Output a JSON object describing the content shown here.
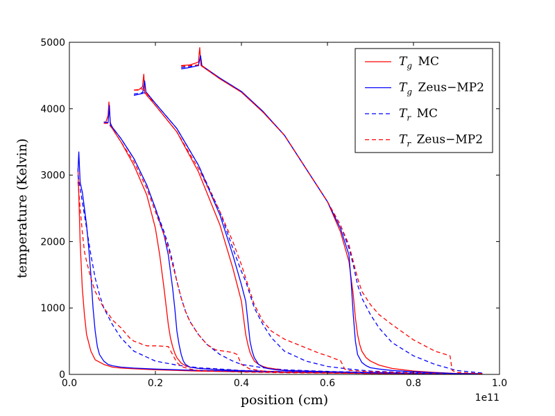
{
  "chart_data": {
    "type": "line",
    "title": "",
    "xlabel": "position (cm)",
    "ylabel": "temperature (Kelvin)",
    "x_scale_label": "1e11",
    "xlim": [
      0.0,
      1.0
    ],
    "ylim": [
      0,
      5000
    ],
    "x_ticks": [
      0.0,
      0.2,
      0.4,
      0.6,
      0.8,
      1.0
    ],
    "x_tick_labels": [
      "0.0",
      "0.2",
      "0.4",
      "0.6",
      "0.8",
      "1.0"
    ],
    "y_ticks": [
      0,
      1000,
      2000,
      3000,
      4000,
      5000
    ],
    "y_tick_labels": [
      "0",
      "1000",
      "2000",
      "3000",
      "4000",
      "5000"
    ],
    "legend_position": "top-right",
    "legend": [
      {
        "var": "T",
        "sub": "g",
        "label": "MC",
        "color": "#ff0000",
        "dash": "solid"
      },
      {
        "var": "T",
        "sub": "g",
        "label": "Zeus−MP2",
        "color": "#0000ff",
        "dash": "solid"
      },
      {
        "var": "T",
        "sub": "r",
        "label": "MC",
        "color": "#0000ff",
        "dash": "dashed"
      },
      {
        "var": "T",
        "sub": "r",
        "label": "Zeus−MP2",
        "color": "#ff0000",
        "dash": "dashed"
      }
    ],
    "series": [
      {
        "name": "Tg MC t1",
        "color": "#ff0000",
        "dash": "solid",
        "x": [
          0.02,
          0.022,
          0.025,
          0.03,
          0.035,
          0.04,
          0.05,
          0.06,
          0.08,
          0.1,
          0.12,
          0.15,
          0.2,
          0.3,
          0.5,
          0.7,
          0.9,
          0.96
        ],
        "y": [
          3100,
          2700,
          2000,
          1300,
          900,
          600,
          350,
          220,
          150,
          110,
          95,
          85,
          70,
          50,
          30,
          15,
          10,
          8
        ]
      },
      {
        "name": "Tg Zeus t1",
        "color": "#0000ff",
        "dash": "solid",
        "x": [
          0.02,
          0.022,
          0.025,
          0.028,
          0.03,
          0.033,
          0.035,
          0.04,
          0.045,
          0.05,
          0.055,
          0.06,
          0.065,
          0.07,
          0.08,
          0.09,
          0.1,
          0.12,
          0.15,
          0.2,
          0.3,
          0.5,
          0.7,
          0.9,
          0.96
        ],
        "y": [
          3050,
          3350,
          2900,
          2800,
          2750,
          2600,
          2500,
          2250,
          1900,
          1500,
          1000,
          650,
          420,
          300,
          200,
          150,
          130,
          110,
          95,
          80,
          60,
          35,
          20,
          10,
          8
        ]
      },
      {
        "name": "Tr MC t1",
        "color": "#0000ff",
        "dash": "dashed",
        "x": [
          0.02,
          0.025,
          0.03,
          0.035,
          0.04,
          0.05,
          0.06,
          0.07,
          0.08,
          0.1,
          0.12,
          0.15,
          0.2,
          0.25,
          0.3,
          0.35,
          0.4,
          0.5,
          0.6,
          0.7,
          0.9,
          0.96
        ],
        "y": [
          3000,
          2800,
          2600,
          2400,
          2200,
          1800,
          1450,
          1200,
          1000,
          750,
          550,
          350,
          200,
          140,
          100,
          80,
          60,
          40,
          30,
          20,
          10,
          8
        ]
      },
      {
        "name": "Tr Zeus t1",
        "color": "#ff0000",
        "dash": "dashed",
        "x": [
          0.02,
          0.025,
          0.03,
          0.035,
          0.04,
          0.05,
          0.06,
          0.07,
          0.08,
          0.09,
          0.1,
          0.11,
          0.12,
          0.14,
          0.15,
          0.16,
          0.17,
          0.18,
          0.2,
          0.23,
          0.24,
          0.25,
          0.26,
          0.28,
          0.3,
          0.35,
          0.4,
          0.5,
          0.6,
          0.7,
          0.9,
          0.96
        ],
        "y": [
          2900,
          2500,
          2150,
          1850,
          1700,
          1450,
          1250,
          1120,
          1000,
          920,
          820,
          760,
          700,
          550,
          500,
          480,
          450,
          430,
          430,
          420,
          300,
          180,
          120,
          80,
          60,
          45,
          35,
          25,
          20,
          15,
          10,
          8
        ]
      },
      {
        "name": "Tg MC t2",
        "color": "#ff0000",
        "dash": "solid",
        "x": [
          0.08,
          0.085,
          0.09,
          0.092,
          0.095,
          0.1,
          0.12,
          0.15,
          0.18,
          0.2,
          0.21,
          0.22,
          0.23,
          0.235,
          0.24,
          0.245,
          0.25,
          0.26,
          0.27,
          0.28,
          0.3,
          0.35,
          0.4,
          0.5,
          0.6,
          0.7,
          0.8,
          0.9,
          0.96
        ],
        "y": [
          3800,
          3800,
          3900,
          4100,
          3800,
          3700,
          3500,
          3150,
          2700,
          2200,
          1800,
          1300,
          750,
          550,
          420,
          320,
          250,
          170,
          130,
          110,
          90,
          70,
          55,
          40,
          30,
          20,
          15,
          10,
          8
        ]
      },
      {
        "name": "Tg Zeus t2",
        "color": "#0000ff",
        "dash": "solid",
        "x": [
          0.08,
          0.09,
          0.093,
          0.095,
          0.1,
          0.12,
          0.15,
          0.18,
          0.2,
          0.22,
          0.23,
          0.24,
          0.245,
          0.25,
          0.255,
          0.26,
          0.265,
          0.27,
          0.28,
          0.3,
          0.35,
          0.4,
          0.5,
          0.6,
          0.7,
          0.8,
          0.9,
          0.96
        ],
        "y": [
          3780,
          3790,
          4050,
          3780,
          3720,
          3550,
          3250,
          2850,
          2500,
          2100,
          1800,
          1300,
          1000,
          650,
          450,
          300,
          200,
          150,
          110,
          90,
          70,
          55,
          40,
          30,
          20,
          15,
          10,
          8
        ]
      },
      {
        "name": "Tr MC t2",
        "color": "#0000ff",
        "dash": "dashed",
        "x": [
          0.08,
          0.09,
          0.1,
          0.12,
          0.15,
          0.18,
          0.2,
          0.22,
          0.23,
          0.24,
          0.245,
          0.25,
          0.26,
          0.27,
          0.28,
          0.3,
          0.32,
          0.35,
          0.38,
          0.4,
          0.45,
          0.5,
          0.6,
          0.7,
          0.8,
          0.9,
          0.96
        ],
        "y": [
          3800,
          3790,
          3720,
          3550,
          3250,
          2850,
          2500,
          2150,
          1950,
          1700,
          1550,
          1400,
          1150,
          950,
          800,
          600,
          450,
          300,
          200,
          150,
          100,
          70,
          45,
          30,
          20,
          10,
          8
        ]
      },
      {
        "name": "Tr Zeus t2",
        "color": "#ff0000",
        "dash": "dashed",
        "x": [
          0.08,
          0.09,
          0.1,
          0.12,
          0.15,
          0.18,
          0.2,
          0.22,
          0.23,
          0.24,
          0.25,
          0.26,
          0.27,
          0.28,
          0.3,
          0.32,
          0.34,
          0.36,
          0.38,
          0.39,
          0.4,
          0.42,
          0.45,
          0.5,
          0.6,
          0.7,
          0.8,
          0.9,
          0.96
        ],
        "y": [
          3780,
          3780,
          3700,
          3500,
          3200,
          2800,
          2450,
          2100,
          1900,
          1650,
          1400,
          1150,
          950,
          800,
          600,
          450,
          370,
          350,
          330,
          300,
          150,
          80,
          50,
          35,
          25,
          15,
          10,
          8,
          6
        ]
      },
      {
        "name": "Tg MC t3",
        "color": "#ff0000",
        "dash": "solid",
        "x": [
          0.15,
          0.16,
          0.17,
          0.173,
          0.175,
          0.18,
          0.2,
          0.25,
          0.3,
          0.35,
          0.38,
          0.4,
          0.405,
          0.41,
          0.415,
          0.42,
          0.425,
          0.43,
          0.44,
          0.45,
          0.46,
          0.48,
          0.5,
          0.6,
          0.7,
          0.8,
          0.9,
          0.96
        ],
        "y": [
          4280,
          4280,
          4330,
          4520,
          4250,
          4200,
          4050,
          3650,
          3050,
          2250,
          1600,
          1100,
          850,
          600,
          450,
          330,
          260,
          200,
          150,
          120,
          100,
          80,
          60,
          40,
          25,
          15,
          10,
          8
        ]
      },
      {
        "name": "Tg Zeus t3",
        "color": "#0000ff",
        "dash": "solid",
        "x": [
          0.15,
          0.17,
          0.175,
          0.178,
          0.18,
          0.2,
          0.25,
          0.3,
          0.35,
          0.38,
          0.4,
          0.41,
          0.415,
          0.42,
          0.425,
          0.43,
          0.44,
          0.45,
          0.46,
          0.48,
          0.5,
          0.6,
          0.7,
          0.8,
          0.9,
          0.96
        ],
        "y": [
          4200,
          4230,
          4420,
          4250,
          4240,
          4080,
          3700,
          3150,
          2400,
          1800,
          1350,
          1100,
          800,
          500,
          350,
          250,
          150,
          110,
          90,
          70,
          60,
          40,
          25,
          15,
          10,
          8
        ]
      },
      {
        "name": "Tr MC t3",
        "color": "#0000ff",
        "dash": "dashed",
        "x": [
          0.15,
          0.17,
          0.18,
          0.2,
          0.25,
          0.3,
          0.35,
          0.38,
          0.4,
          0.41,
          0.42,
          0.43,
          0.45,
          0.47,
          0.5,
          0.55,
          0.6,
          0.65,
          0.7,
          0.8,
          0.9,
          0.96
        ],
        "y": [
          4220,
          4240,
          4230,
          4080,
          3700,
          3150,
          2450,
          1900,
          1550,
          1400,
          1200,
          1000,
          750,
          550,
          350,
          200,
          120,
          80,
          50,
          25,
          10,
          8
        ]
      },
      {
        "name": "Tr Zeus t3",
        "color": "#ff0000",
        "dash": "dashed",
        "x": [
          0.15,
          0.17,
          0.18,
          0.2,
          0.25,
          0.3,
          0.35,
          0.38,
          0.4,
          0.41,
          0.42,
          0.43,
          0.45,
          0.47,
          0.5,
          0.55,
          0.58,
          0.6,
          0.62,
          0.63,
          0.635,
          0.64,
          0.65,
          0.7,
          0.8,
          0.9,
          0.96
        ],
        "y": [
          4280,
          4300,
          4230,
          4050,
          3650,
          3100,
          2450,
          2000,
          1650,
          1450,
          1250,
          1050,
          800,
          650,
          530,
          400,
          320,
          280,
          230,
          210,
          150,
          80,
          60,
          40,
          20,
          10,
          8
        ]
      },
      {
        "name": "Tg MC t4",
        "color": "#ff0000",
        "dash": "solid",
        "x": [
          0.26,
          0.28,
          0.3,
          0.303,
          0.306,
          0.31,
          0.35,
          0.4,
          0.45,
          0.5,
          0.55,
          0.6,
          0.63,
          0.65,
          0.66,
          0.665,
          0.67,
          0.675,
          0.68,
          0.69,
          0.7,
          0.72,
          0.75,
          0.8,
          0.85,
          0.9,
          0.96
        ],
        "y": [
          4650,
          4660,
          4700,
          4920,
          4650,
          4630,
          4450,
          4250,
          3950,
          3600,
          3100,
          2600,
          2150,
          1700,
          1200,
          850,
          600,
          450,
          350,
          250,
          200,
          140,
          90,
          50,
          30,
          15,
          8
        ]
      },
      {
        "name": "Tg Zeus t4",
        "color": "#0000ff",
        "dash": "solid",
        "x": [
          0.26,
          0.28,
          0.3,
          0.305,
          0.308,
          0.31,
          0.35,
          0.4,
          0.45,
          0.5,
          0.55,
          0.6,
          0.63,
          0.65,
          0.655,
          0.66,
          0.665,
          0.67,
          0.68,
          0.69,
          0.7,
          0.72,
          0.75,
          0.8,
          0.85,
          0.9,
          0.96
        ],
        "y": [
          4600,
          4620,
          4650,
          4800,
          4650,
          4640,
          4460,
          4260,
          3960,
          3600,
          3100,
          2600,
          2200,
          1800,
          1400,
          900,
          500,
          300,
          180,
          130,
          100,
          80,
          60,
          40,
          25,
          12,
          8
        ]
      },
      {
        "name": "Tr MC t4",
        "color": "#0000ff",
        "dash": "dashed",
        "x": [
          0.26,
          0.3,
          0.31,
          0.35,
          0.4,
          0.45,
          0.5,
          0.55,
          0.6,
          0.63,
          0.65,
          0.66,
          0.67,
          0.68,
          0.7,
          0.72,
          0.75,
          0.8,
          0.85,
          0.9,
          0.96
        ],
        "y": [
          4620,
          4650,
          4640,
          4460,
          4260,
          3960,
          3600,
          3100,
          2600,
          2250,
          1900,
          1650,
          1350,
          1150,
          900,
          700,
          480,
          280,
          150,
          60,
          20
        ]
      },
      {
        "name": "Tr Zeus t4",
        "color": "#ff0000",
        "dash": "dashed",
        "x": [
          0.26,
          0.3,
          0.31,
          0.35,
          0.4,
          0.45,
          0.5,
          0.55,
          0.6,
          0.63,
          0.65,
          0.66,
          0.67,
          0.68,
          0.7,
          0.72,
          0.75,
          0.8,
          0.85,
          0.87,
          0.885,
          0.89,
          0.9,
          0.96
        ],
        "y": [
          4640,
          4660,
          4640,
          4450,
          4250,
          3950,
          3600,
          3100,
          2600,
          2250,
          1950,
          1700,
          1450,
          1250,
          1050,
          900,
          750,
          520,
          350,
          310,
          280,
          60,
          30,
          10
        ]
      }
    ]
  }
}
